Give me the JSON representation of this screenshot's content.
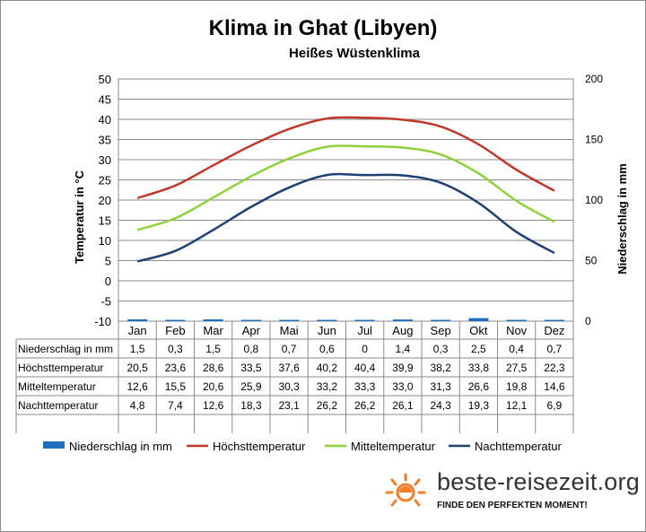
{
  "page": {
    "title": "Klima in Ghat (Libyen)",
    "subtitle": "Heißes Wüstenklima"
  },
  "brand": {
    "name": "beste-reisezeit.org",
    "slogan": "FINDE DEN PERFEKTEN MOMENT!",
    "icon": "sun-icon",
    "accent_color": "#f07d2a"
  },
  "chart_data": {
    "type": "line",
    "title": "Klima in Ghat (Libyen)",
    "subtitle": "Heißes Wüstenklima",
    "categories": [
      "Jan",
      "Feb",
      "Mar",
      "Apr",
      "Mai",
      "Jun",
      "Jul",
      "Aug",
      "Sep",
      "Okt",
      "Nov",
      "Dez"
    ],
    "y_left": {
      "label": "Temperatur in °C",
      "range": [
        -10,
        50
      ],
      "ticks": [
        "50",
        "45",
        "40",
        "35",
        "30",
        "25",
        "20",
        "15",
        "10",
        "5",
        "0",
        "-5",
        "-10"
      ]
    },
    "y_right": {
      "label": "Niederschlag in mm",
      "range": [
        0,
        200
      ],
      "ticks": [
        "200",
        "150",
        "100",
        "50",
        "0"
      ]
    },
    "grid": true,
    "legend_position": "bottom",
    "series": [
      {
        "name": "Niederschlag in mm",
        "kind": "bar",
        "axis": "right",
        "color": "#1f6fbf",
        "values": [
          1.5,
          0.3,
          1.5,
          0.8,
          0.7,
          0.6,
          0,
          1.4,
          0.3,
          2.5,
          0.4,
          0.7
        ],
        "labels": [
          "1,5",
          "0,3",
          "1,5",
          "0,8",
          "0,7",
          "0,6",
          "0",
          "1,4",
          "0,3",
          "2,5",
          "0,4",
          "0,7"
        ]
      },
      {
        "name": "Höchsttemperatur",
        "kind": "line",
        "axis": "left",
        "color": "#c0392b",
        "values": [
          20.5,
          23.6,
          28.6,
          33.5,
          37.6,
          40.2,
          40.4,
          39.9,
          38.2,
          33.8,
          27.5,
          22.3
        ],
        "labels": [
          "20,5",
          "23,6",
          "28,6",
          "33,5",
          "37,6",
          "40,2",
          "40,4",
          "39,9",
          "38,2",
          "33,8",
          "27,5",
          "22,3"
        ]
      },
      {
        "name": "Mitteltemperatur",
        "kind": "line",
        "axis": "left",
        "color": "#8ed13b",
        "values": [
          12.6,
          15.5,
          20.6,
          25.9,
          30.3,
          33.2,
          33.3,
          33.0,
          31.3,
          26.6,
          19.8,
          14.6
        ],
        "labels": [
          "12,6",
          "15,5",
          "20,6",
          "25,9",
          "30,3",
          "33,2",
          "33,3",
          "33,0",
          "31,3",
          "26,6",
          "19,8",
          "14,6"
        ]
      },
      {
        "name": "Nachttemperatur",
        "kind": "line",
        "axis": "left",
        "color": "#1f3f73",
        "values": [
          4.8,
          7.4,
          12.6,
          18.3,
          23.1,
          26.2,
          26.2,
          26.1,
          24.3,
          19.3,
          12.1,
          6.9
        ],
        "labels": [
          "4,8",
          "7,4",
          "12,6",
          "18,3",
          "23,1",
          "26,2",
          "26,2",
          "26,1",
          "24,3",
          "19,3",
          "12,1",
          "6,9"
        ]
      }
    ]
  }
}
